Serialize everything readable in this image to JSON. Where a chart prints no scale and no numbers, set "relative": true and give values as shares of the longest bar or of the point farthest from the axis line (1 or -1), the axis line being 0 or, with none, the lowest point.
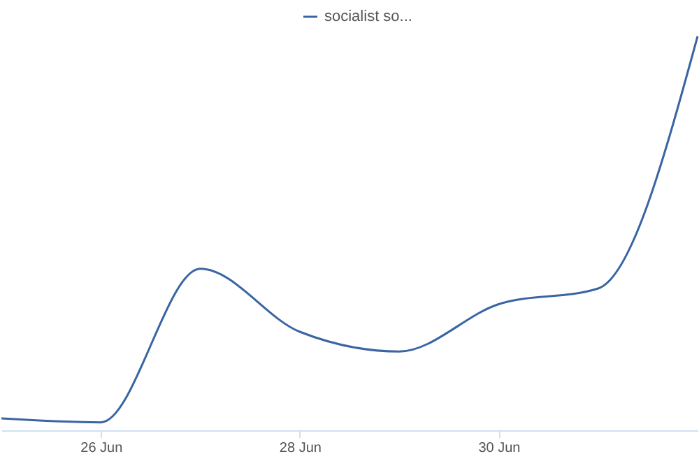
{
  "chart_data": {
    "type": "line",
    "relative": true,
    "x": [
      "--06-25",
      "--06-26",
      "--06-27",
      "--06-28",
      "--06-29",
      "--06-30",
      "--07-01",
      "--07-02"
    ],
    "series": [
      {
        "name": "socialist so...",
        "color": "#3a65a3",
        "values": [
          0.03,
          0.02,
          0.41,
          0.25,
          0.2,
          0.32,
          0.36,
          1.0
        ]
      }
    ],
    "xlim": [
      "--06-25",
      "--07-02"
    ],
    "xticks": [
      {
        "value": "--06-26",
        "label": "26 Jun"
      },
      {
        "value": "--06-28",
        "label": "28 Jun"
      },
      {
        "value": "--06-30",
        "label": "30 Jun"
      }
    ],
    "legend": "top",
    "grid": false,
    "marker": "none",
    "line_style": "solid"
  }
}
